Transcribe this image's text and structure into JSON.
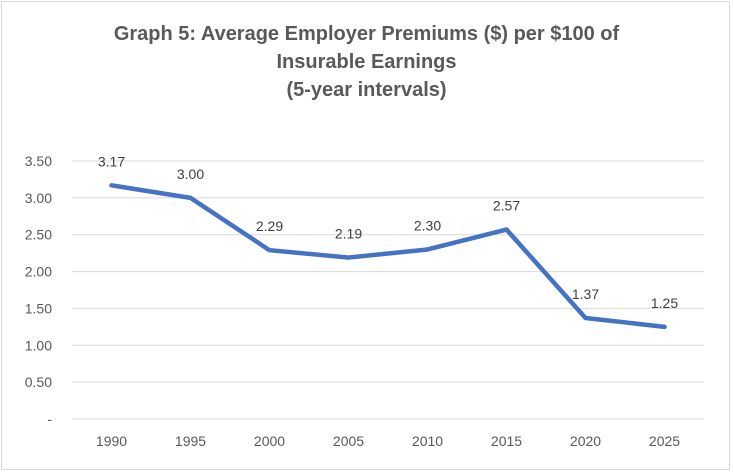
{
  "chart_data": {
    "type": "line",
    "title_lines": [
      "Graph 5: Average Employer Premiums ($) per $100 of",
      "Insurable Earnings",
      "(5-year intervals)"
    ],
    "categories": [
      "1990",
      "1995",
      "2000",
      "2005",
      "2010",
      "2015",
      "2020",
      "2025"
    ],
    "series": [
      {
        "name": "Average Employer Premiums",
        "values": [
          3.17,
          3.0,
          2.29,
          2.19,
          2.3,
          2.57,
          1.37,
          1.25
        ],
        "labels": [
          "3.17",
          "3.00",
          "2.29",
          "2.19",
          "2.30",
          "2.57",
          "1.37",
          "1.25"
        ],
        "color": "#4472c4"
      }
    ],
    "y_ticks": [
      {
        "value": 0,
        "label": "-"
      },
      {
        "value": 0.5,
        "label": "0.50"
      },
      {
        "value": 1.0,
        "label": "1.00"
      },
      {
        "value": 1.5,
        "label": "1.50"
      },
      {
        "value": 2.0,
        "label": "2.00"
      },
      {
        "value": 2.5,
        "label": "2.50"
      },
      {
        "value": 3.0,
        "label": "3.00"
      },
      {
        "value": 3.5,
        "label": "3.50"
      }
    ],
    "ylim": [
      0,
      3.5
    ],
    "xlabel": "",
    "ylabel": "",
    "grid": true,
    "legend": "none",
    "gridline_color": "#d9d9d9"
  }
}
